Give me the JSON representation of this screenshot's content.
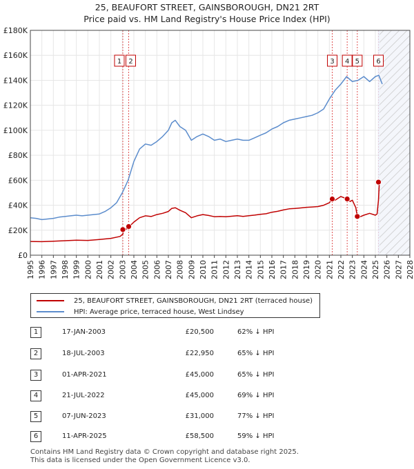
{
  "title_line1": "25, BEAUFORT STREET, GAINSBOROUGH, DN21 2RT",
  "title_line2": "Price paid vs. HM Land Registry's House Price Index (HPI)",
  "colors": {
    "property": "#c00000",
    "hpi": "#5b8ccc",
    "marker_line": "#e05050",
    "forecast_hatch": "#bbbbbb",
    "grid": "#e6e6e6"
  },
  "chart_data": {
    "type": "line",
    "x_range": [
      1995,
      2028
    ],
    "ylim": [
      0,
      180000
    ],
    "y_ticks": [
      {
        "value": 0,
        "label": "£0"
      },
      {
        "value": 20000,
        "label": "£20K"
      },
      {
        "value": 40000,
        "label": "£40K"
      },
      {
        "value": 60000,
        "label": "£60K"
      },
      {
        "value": 80000,
        "label": "£80K"
      },
      {
        "value": 100000,
        "label": "£100K"
      },
      {
        "value": 120000,
        "label": "£120K"
      },
      {
        "value": 140000,
        "label": "£140K"
      },
      {
        "value": 160000,
        "label": "£160K"
      },
      {
        "value": 180000,
        "label": "£180K"
      }
    ],
    "x_ticks": [
      "1995",
      "1996",
      "1997",
      "1998",
      "1999",
      "2000",
      "2001",
      "2002",
      "2003",
      "2004",
      "2005",
      "2006",
      "2007",
      "2008",
      "2009",
      "2010",
      "2011",
      "2012",
      "2013",
      "2014",
      "2015",
      "2016",
      "2017",
      "2018",
      "2019",
      "2020",
      "2021",
      "2022",
      "2023",
      "2024",
      "2025",
      "2026",
      "2027",
      "2028"
    ],
    "forecast_start": 2025.35,
    "series": [
      {
        "name": "HPI: Average price, terraced house, West Lindsey",
        "x": [
          1995.0,
          1995.5,
          1996.0,
          1996.5,
          1997.0,
          1997.5,
          1998.0,
          1998.5,
          1999.0,
          1999.5,
          2000.0,
          2000.5,
          2001.0,
          2001.5,
          2002.0,
          2002.5,
          2003.0,
          2003.5,
          2004.0,
          2004.5,
          2005.0,
          2005.5,
          2006.0,
          2006.5,
          2007.0,
          2007.3,
          2007.6,
          2008.0,
          2008.5,
          2009.0,
          2009.5,
          2010.0,
          2010.5,
          2011.0,
          2011.5,
          2012.0,
          2012.5,
          2013.0,
          2013.5,
          2014.0,
          2014.5,
          2015.0,
          2015.5,
          2016.0,
          2016.5,
          2017.0,
          2017.5,
          2018.0,
          2018.5,
          2019.0,
          2019.5,
          2020.0,
          2020.5,
          2021.0,
          2021.5,
          2022.0,
          2022.5,
          2023.0,
          2023.5,
          2024.0,
          2024.5,
          2025.0,
          2025.3,
          2025.6
        ],
        "values": [
          30000,
          29500,
          28500,
          29000,
          29500,
          30500,
          31000,
          31500,
          32000,
          31500,
          32000,
          32500,
          33000,
          35000,
          38000,
          42000,
          50000,
          60000,
          75000,
          85000,
          89000,
          88000,
          91000,
          95000,
          100000,
          106000,
          108000,
          103000,
          100000,
          92000,
          95000,
          97000,
          95000,
          92000,
          93000,
          91000,
          92000,
          93000,
          92000,
          92000,
          94000,
          96000,
          98000,
          101000,
          103000,
          106000,
          108000,
          109000,
          110000,
          111000,
          112000,
          114000,
          117000,
          125000,
          132000,
          137000,
          143000,
          139000,
          140000,
          143000,
          139000,
          143000,
          144000,
          137000
        ]
      },
      {
        "name": "25, BEAUFORT STREET, GAINSBOROUGH, DN21 2RT (terraced house)",
        "x": [
          1995.0,
          1996.0,
          1997.0,
          1998.0,
          1999.0,
          2000.0,
          2001.0,
          2002.0,
          2002.8,
          2003.05,
          2003.1,
          2003.55,
          2003.6,
          2004.0,
          2004.5,
          2005.0,
          2005.5,
          2006.0,
          2006.5,
          2007.0,
          2007.3,
          2007.6,
          2008.0,
          2008.5,
          2009.0,
          2009.5,
          2010.0,
          2010.5,
          2011.0,
          2011.5,
          2012.0,
          2012.5,
          2013.0,
          2013.5,
          2014.0,
          2014.5,
          2015.0,
          2015.5,
          2016.0,
          2016.5,
          2017.0,
          2017.5,
          2018.0,
          2018.5,
          2019.0,
          2019.5,
          2020.0,
          2020.5,
          2021.0,
          2021.25,
          2021.5,
          2022.0,
          2022.55,
          2022.8,
          2023.0,
          2023.3,
          2023.43,
          2023.6,
          2024.0,
          2024.5,
          2025.0,
          2025.15,
          2025.27,
          2025.35
        ],
        "values": [
          11000,
          10800,
          11200,
          11600,
          12000,
          11800,
          12600,
          13500,
          15000,
          17000,
          20500,
          21500,
          22950,
          26500,
          30000,
          31500,
          31000,
          32500,
          33500,
          35000,
          37500,
          38000,
          36000,
          34000,
          30000,
          31500,
          32500,
          31800,
          30800,
          31000,
          30800,
          31200,
          31600,
          31100,
          31600,
          32100,
          32700,
          33200,
          34400,
          35100,
          36200,
          37100,
          37400,
          37800,
          38300,
          38600,
          38900,
          40000,
          42000,
          45000,
          44000,
          47000,
          45000,
          43000,
          44000,
          38000,
          31000,
          30500,
          32000,
          33500,
          32000,
          33000,
          44000,
          58500
        ]
      }
    ],
    "transactions": [
      {
        "id": "1",
        "date": "17-JAN-2003",
        "price": "£20,500",
        "hpi_diff": "62% ↓ HPI",
        "x": 2003.04,
        "value": 20500
      },
      {
        "id": "2",
        "date": "18-JUL-2003",
        "price": "£22,950",
        "hpi_diff": "65% ↓ HPI",
        "x": 2003.55,
        "value": 22950
      },
      {
        "id": "3",
        "date": "01-APR-2021",
        "price": "£45,000",
        "hpi_diff": "65% ↓ HPI",
        "x": 2021.25,
        "value": 45000
      },
      {
        "id": "4",
        "date": "21-JUL-2022",
        "price": "£45,000",
        "hpi_diff": "69% ↓ HPI",
        "x": 2022.55,
        "value": 45000
      },
      {
        "id": "5",
        "date": "07-JUN-2023",
        "price": "£31,000",
        "hpi_diff": "77% ↓ HPI",
        "x": 2023.43,
        "value": 31000
      },
      {
        "id": "6",
        "date": "11-APR-2025",
        "price": "£58,500",
        "hpi_diff": "59% ↓ HPI",
        "x": 2025.27,
        "value": 58500
      }
    ]
  },
  "legend": {
    "property_label": "25, BEAUFORT STREET, GAINSBOROUGH, DN21 2RT (terraced house)",
    "hpi_label": "HPI: Average price, terraced house, West Lindsey"
  },
  "footer": {
    "line1": "Contains HM Land Registry data © Crown copyright and database right 2025.",
    "line2": "This data is licensed under the Open Government Licence v3.0."
  }
}
